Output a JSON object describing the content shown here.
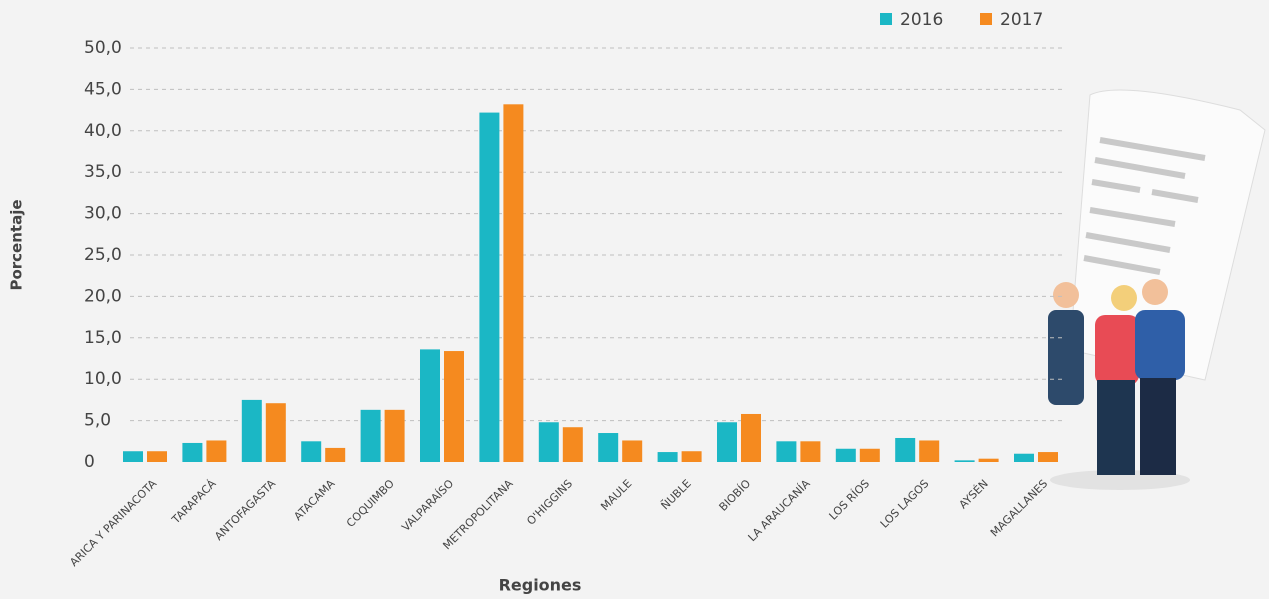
{
  "chart_data": {
    "type": "bar",
    "x_label": "Regiones",
    "y_label": "Porcentaje",
    "categories": [
      "ARICA Y PARINACOTA",
      "TARAPACÁ",
      "ANTOFAGASTA",
      "ATACAMA",
      "COQUIMBO",
      "VALPARAÍSO",
      "METROPOLITANA",
      "O'HIGGINS",
      "MAULE",
      "ÑUBLE",
      "BIOBÍO",
      "LA ARAUCANÍA",
      "LOS RÍOS",
      "LOS LAGOS",
      "AYSÉN",
      "MAGALLANES"
    ],
    "series": [
      {
        "name": "2016",
        "color": "#1bb7c5",
        "values": [
          1.3,
          2.3,
          7.5,
          2.5,
          6.3,
          13.6,
          42.2,
          4.8,
          3.5,
          1.2,
          4.8,
          2.5,
          1.6,
          2.9,
          0.2,
          1.0
        ]
      },
      {
        "name": "2017",
        "color": "#f58a1f",
        "values": [
          1.3,
          2.6,
          7.1,
          1.7,
          6.3,
          13.4,
          43.2,
          4.2,
          2.6,
          1.3,
          5.8,
          2.5,
          1.6,
          2.6,
          0.4,
          1.2
        ]
      }
    ],
    "ylim": [
      0,
      50
    ],
    "yticks": [
      0,
      {
        "value": 5,
        "label": "5,0"
      },
      {
        "value": 10,
        "label": "10,0"
      },
      {
        "value": 15,
        "label": "15,0"
      },
      {
        "value": 20,
        "label": "20,0"
      },
      {
        "value": 25,
        "label": "25,0"
      },
      {
        "value": 30,
        "label": "30,0"
      },
      {
        "value": 35,
        "label": "35,0"
      },
      {
        "value": 40,
        "label": "40,0"
      },
      {
        "value": 45,
        "label": "45,0"
      },
      {
        "value": 50,
        "label": "50,0"
      }
    ],
    "grid": true,
    "legend": "top-right"
  }
}
